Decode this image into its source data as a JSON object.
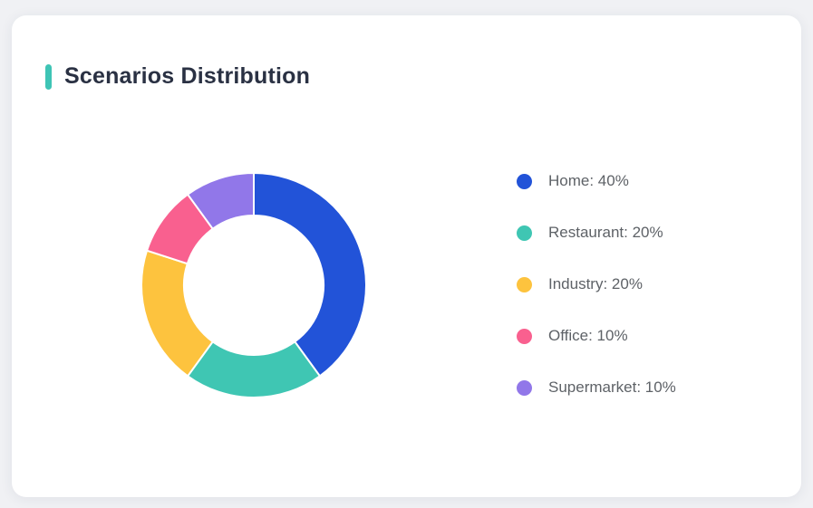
{
  "card": {
    "title": "Scenarios Distribution",
    "accent_color": "#3ec4b5"
  },
  "chart_data": {
    "type": "pie",
    "subtype": "donut",
    "title": "Scenarios Distribution",
    "labels": [
      "Home",
      "Restaurant",
      "Industry",
      "Office",
      "Supermarket"
    ],
    "values": [
      40,
      20,
      20,
      10,
      10
    ],
    "unit": "%",
    "colors": [
      "#2253d8",
      "#3fc6b3",
      "#fdc33e",
      "#f9608f",
      "#9177e9"
    ],
    "start_angle": "top",
    "direction": "clockwise",
    "inner_radius_ratio": 0.62,
    "segment_border_color": "#ffffff",
    "legend_position": "right",
    "legend_format": "{label}: {value}%"
  }
}
